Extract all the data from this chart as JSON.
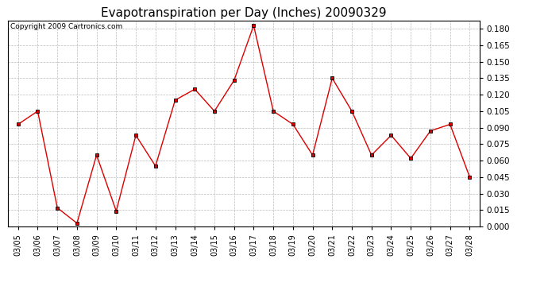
{
  "title": "Evapotranspiration per Day (Inches) 20090329",
  "copyright": "Copyright 2009 Cartronics.com",
  "dates": [
    "03/05",
    "03/06",
    "03/07",
    "03/08",
    "03/09",
    "03/10",
    "03/11",
    "03/12",
    "03/13",
    "03/14",
    "03/15",
    "03/16",
    "03/17",
    "03/18",
    "03/19",
    "03/20",
    "03/21",
    "03/22",
    "03/23",
    "03/24",
    "03/25",
    "03/26",
    "03/27",
    "03/28"
  ],
  "values": [
    0.093,
    0.105,
    0.017,
    0.003,
    0.065,
    0.014,
    0.083,
    0.055,
    0.115,
    0.125,
    0.105,
    0.133,
    0.183,
    0.105,
    0.093,
    0.065,
    0.135,
    0.105,
    0.065,
    0.083,
    0.062,
    0.087,
    0.093,
    0.045
  ],
  "line_color": "#dd0000",
  "marker_color": "#000000",
  "marker_style": "s",
  "marker_size": 3,
  "ylim_min": 0.0,
  "ylim_max": 0.1872,
  "yticks": [
    0.0,
    0.015,
    0.03,
    0.045,
    0.06,
    0.075,
    0.09,
    0.105,
    0.12,
    0.135,
    0.15,
    0.165,
    0.18
  ],
  "background_color": "#ffffff",
  "grid_color": "#bbbbbb",
  "title_fontsize": 11,
  "copyright_fontsize": 6.5,
  "tick_fontsize": 7,
  "ytick_fontsize": 7.5
}
